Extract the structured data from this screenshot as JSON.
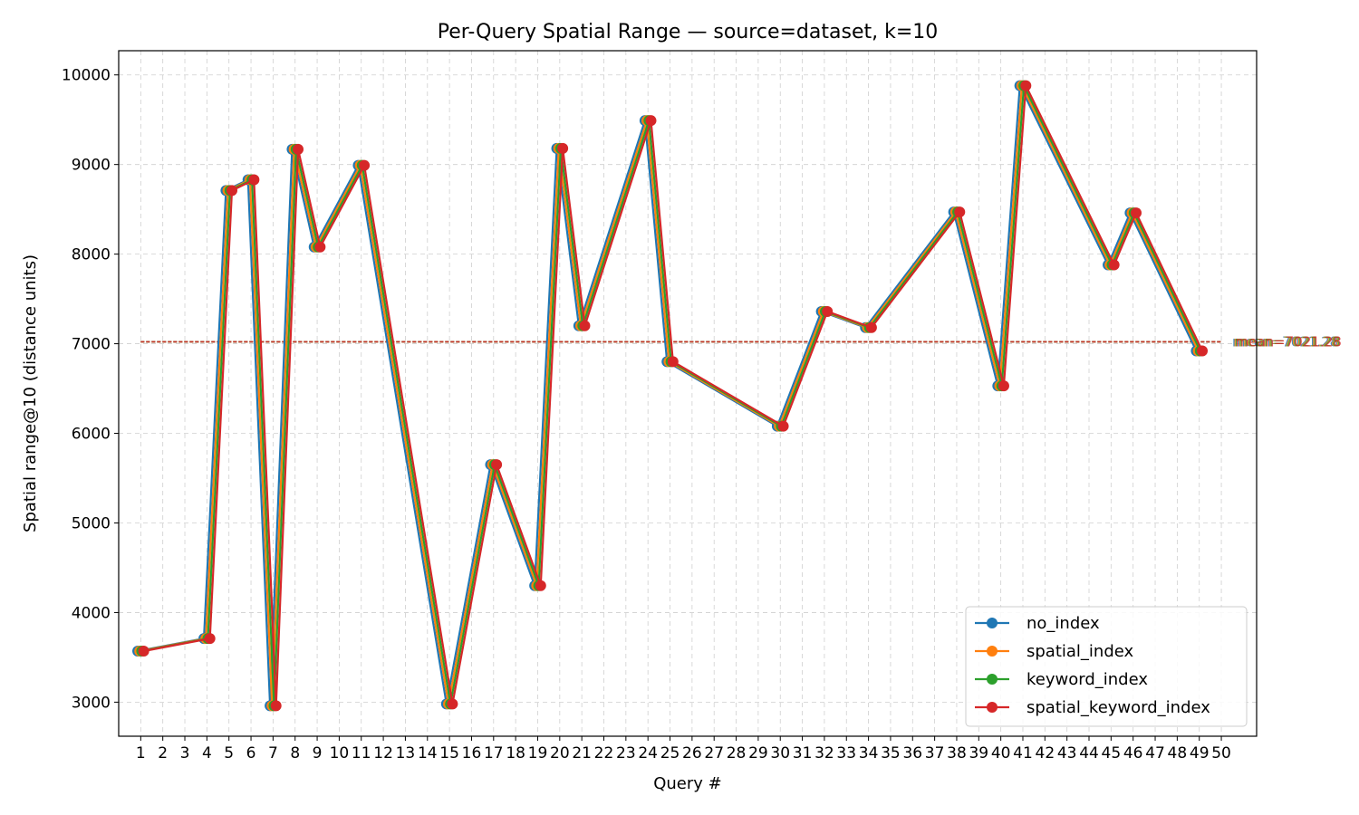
{
  "chart_data": {
    "type": "line",
    "title": "Per-Query Spatial Range — source=dataset, k=10",
    "xlabel": "Query #",
    "ylabel": "Spatial range@10 (distance units)",
    "ylim": [
      2620,
      10270
    ],
    "yticks": [
      3000,
      4000,
      5000,
      6000,
      7000,
      8000,
      9000,
      10000
    ],
    "xlim": [
      0,
      51.6
    ],
    "categories": [
      "1",
      "2",
      "3",
      "4",
      "5",
      "6",
      "7",
      "8",
      "9",
      "10",
      "11",
      "12",
      "13",
      "14",
      "15",
      "16",
      "17",
      "18",
      "19",
      "20",
      "21",
      "22",
      "23",
      "24",
      "25",
      "26",
      "27",
      "28",
      "29",
      "30",
      "31",
      "32",
      "33",
      "34",
      "35",
      "36",
      "37",
      "38",
      "39",
      "40",
      "41",
      "42",
      "43",
      "44",
      "45",
      "46",
      "47",
      "48",
      "49",
      "50"
    ],
    "grid": true,
    "legend_position": "lower right",
    "x": [
      1,
      4,
      5,
      6,
      7,
      8,
      9,
      11,
      15,
      17,
      19,
      20,
      21,
      24,
      25,
      30,
      32,
      34,
      38,
      40,
      41,
      45,
      46,
      49
    ],
    "series": [
      {
        "name": "no_index",
        "color": "#1f77b4",
        "mean_label": "mean=7021.28",
        "mean": 7021.28,
        "values": [
          3570,
          3710,
          8710,
          8830,
          2960,
          9170,
          8080,
          8990,
          2980,
          5650,
          4300,
          9180,
          7200,
          9490,
          6800,
          6080,
          7360,
          7180,
          8470,
          6530,
          9880,
          7880,
          8460,
          6920
        ]
      },
      {
        "name": "spatial_index",
        "color": "#ff7f0e",
        "mean_label": "mean=7021.28",
        "mean": 7021.28,
        "values": [
          3570,
          3710,
          8710,
          8830,
          2960,
          9170,
          8080,
          8990,
          2980,
          5650,
          4300,
          9180,
          7200,
          9490,
          6800,
          6080,
          7360,
          7180,
          8470,
          6530,
          9880,
          7880,
          8460,
          6920
        ]
      },
      {
        "name": "keyword_index",
        "color": "#2ca02c",
        "mean_label": "mean=7021.28",
        "mean": 7021.28,
        "values": [
          3570,
          3710,
          8710,
          8830,
          2960,
          9170,
          8080,
          8990,
          2980,
          5650,
          4300,
          9180,
          7200,
          9490,
          6800,
          6080,
          7360,
          7180,
          8470,
          6530,
          9880,
          7880,
          8460,
          6920
        ]
      },
      {
        "name": "spatial_keyword_index",
        "color": "#d62728",
        "mean_label": "mean=7021.28",
        "mean": 7021.28,
        "values": [
          3570,
          3710,
          8710,
          8830,
          2960,
          9170,
          8080,
          8990,
          2980,
          5650,
          4300,
          9180,
          7200,
          9490,
          6800,
          6080,
          7360,
          7180,
          8470,
          6530,
          9880,
          7880,
          8460,
          6920
        ]
      }
    ]
  }
}
